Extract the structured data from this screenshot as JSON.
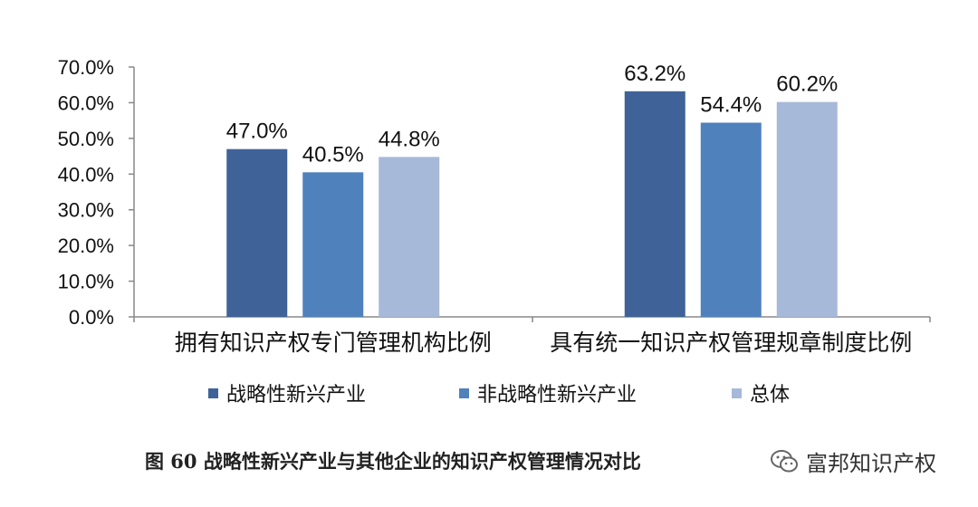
{
  "chart_data": {
    "type": "bar",
    "categories": [
      "拥有知识产权专门管理机构比例",
      "具有统一知识产权管理规章制度比例"
    ],
    "series": [
      {
        "name": "战略性新兴产业",
        "values": [
          47.0,
          63.2
        ],
        "color": "#3f6398"
      },
      {
        "name": "非战略性新兴产业",
        "values": [
          40.5,
          54.4
        ],
        "color": "#4f81bd"
      },
      {
        "name": "总体",
        "values": [
          44.8,
          60.2
        ],
        "color": "#a7b9d9"
      }
    ],
    "value_labels": [
      [
        "47.0%",
        "63.2%"
      ],
      [
        "40.5%",
        "54.4%"
      ],
      [
        "44.8%",
        "60.2%"
      ]
    ],
    "y_ticks": [
      "0.0%",
      "10.0%",
      "20.0%",
      "30.0%",
      "40.0%",
      "50.0%",
      "60.0%",
      "70.0%"
    ],
    "ylim": [
      0,
      70
    ],
    "legend_position": "bottom",
    "grid": false
  },
  "caption": "图 60 战略性新兴产业与其他企业的知识产权管理情况对比",
  "watermark": {
    "text": "富邦知识产权",
    "icon": "wechat-icon"
  }
}
